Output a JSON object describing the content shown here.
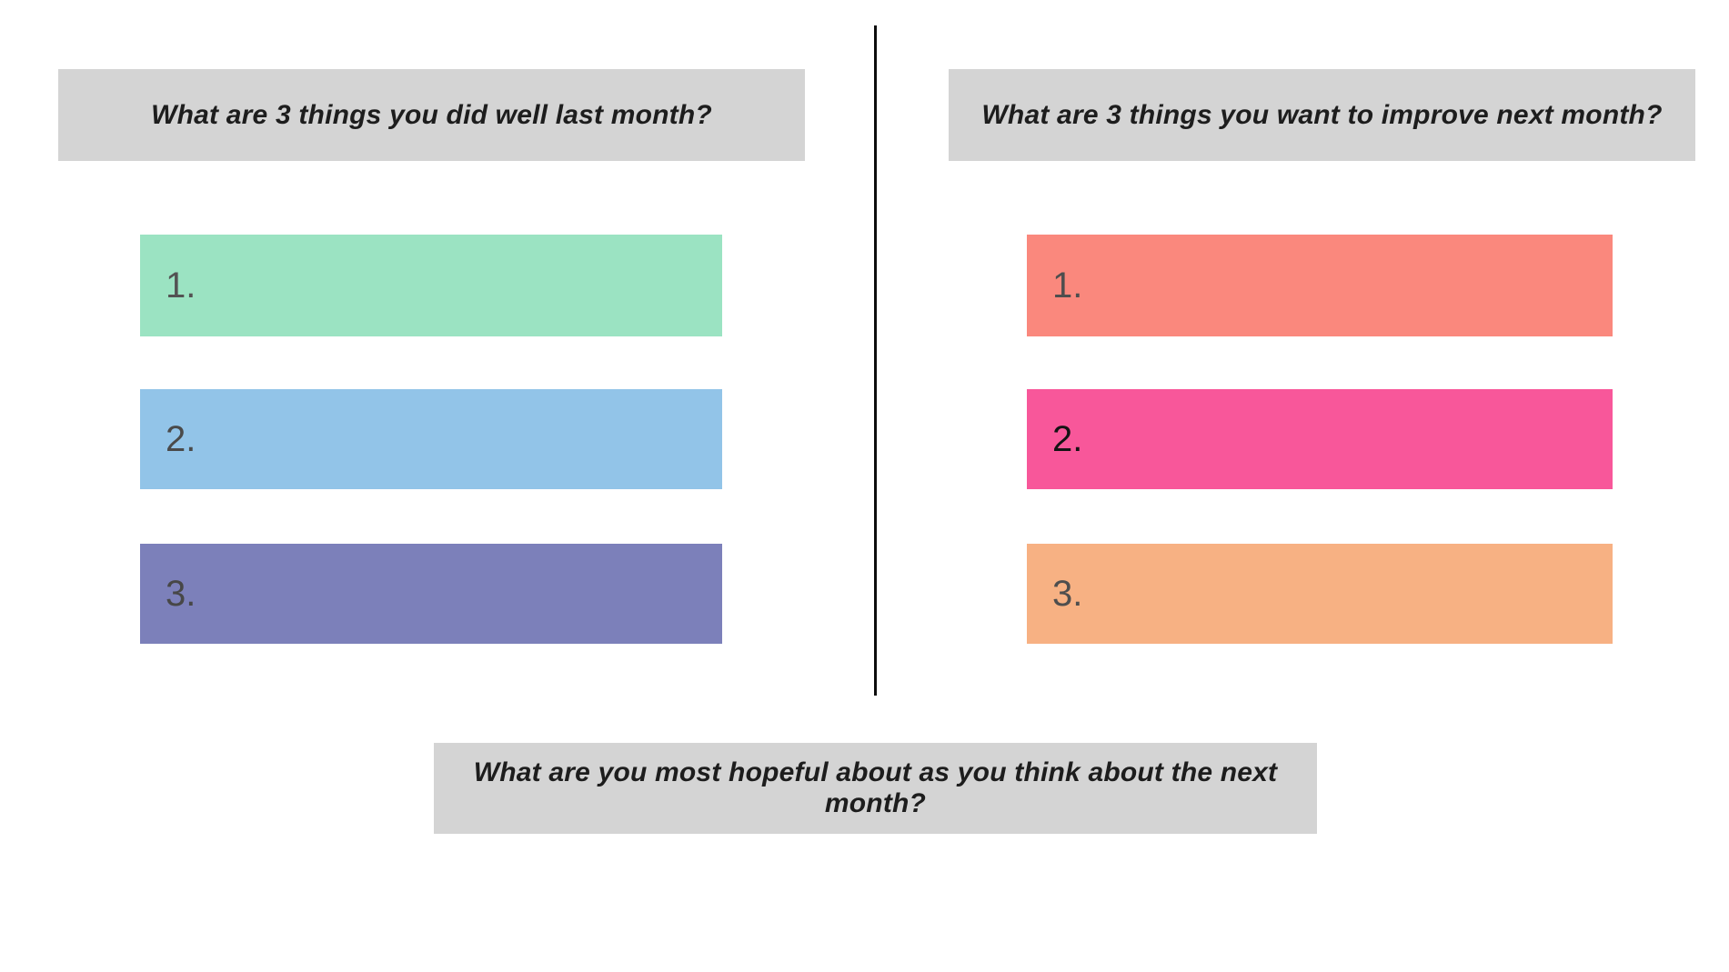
{
  "canvas": {
    "background": "#ffffff",
    "divider_color": "#0d0d0d"
  },
  "left_panel": {
    "header": {
      "label": "What are 3 things you did well last month?",
      "bg": "#d4d4d4",
      "text_color": "#1d1d1d"
    },
    "items": [
      {
        "label": "1.",
        "bg": "#9be3c2",
        "text_color": "#535353"
      },
      {
        "label": "2.",
        "bg": "#92c4e8",
        "text_color": "#4a4a4a"
      },
      {
        "label": "3.",
        "bg": "#7c80ba",
        "text_color": "#474747"
      }
    ]
  },
  "right_panel": {
    "header": {
      "label": "What are 3 things you want to improve next month?",
      "bg": "#d4d4d4",
      "text_color": "#1d1d1d"
    },
    "items": [
      {
        "label": "1.",
        "bg": "#fa887d",
        "text_color": "#4e4e4e"
      },
      {
        "label": "2.",
        "bg": "#f8579a",
        "text_color": "#141414"
      },
      {
        "label": "3.",
        "bg": "#f7b183",
        "text_color": "#4e4e4e"
      }
    ]
  },
  "footer": {
    "header": {
      "label": "What are you most hopeful about as you think about the next month?",
      "bg": "#d4d4d4",
      "text_color": "#1d1d1d"
    }
  }
}
